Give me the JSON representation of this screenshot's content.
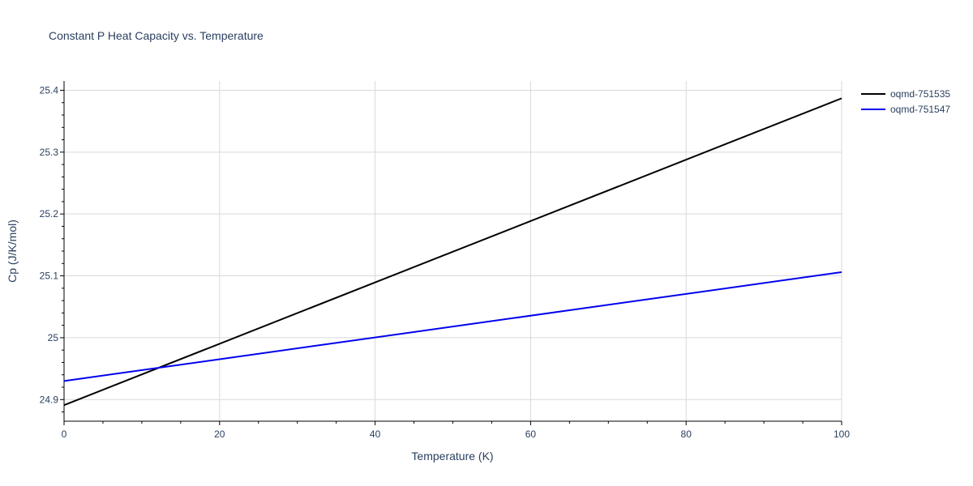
{
  "chart_data": {
    "type": "line",
    "title": "Constant P Heat Capacity vs. Temperature",
    "xlabel": "Temperature (K)",
    "ylabel": "Cp (J/K/mol)",
    "xlim": [
      0,
      100
    ],
    "ylim": [
      24.865,
      25.415
    ],
    "x_ticks": [
      0,
      20,
      40,
      60,
      80,
      100
    ],
    "x_tick_labels": [
      "0",
      "20",
      "40",
      "60",
      "80",
      "100"
    ],
    "y_ticks": [
      24.9,
      25.0,
      25.1,
      25.2,
      25.3,
      25.4
    ],
    "y_tick_labels": [
      "24.9",
      "25",
      "25.1",
      "25.2",
      "25.3",
      "25.4"
    ],
    "grid": true,
    "legend_position": "top-right",
    "series": [
      {
        "name": "oqmd-751535",
        "color": "#000000",
        "x": [
          0,
          100
        ],
        "y": [
          24.891,
          25.387
        ]
      },
      {
        "name": "oqmd-751547",
        "color": "#0000ee",
        "x": [
          0,
          100
        ],
        "y": [
          24.93,
          25.106
        ]
      }
    ]
  }
}
